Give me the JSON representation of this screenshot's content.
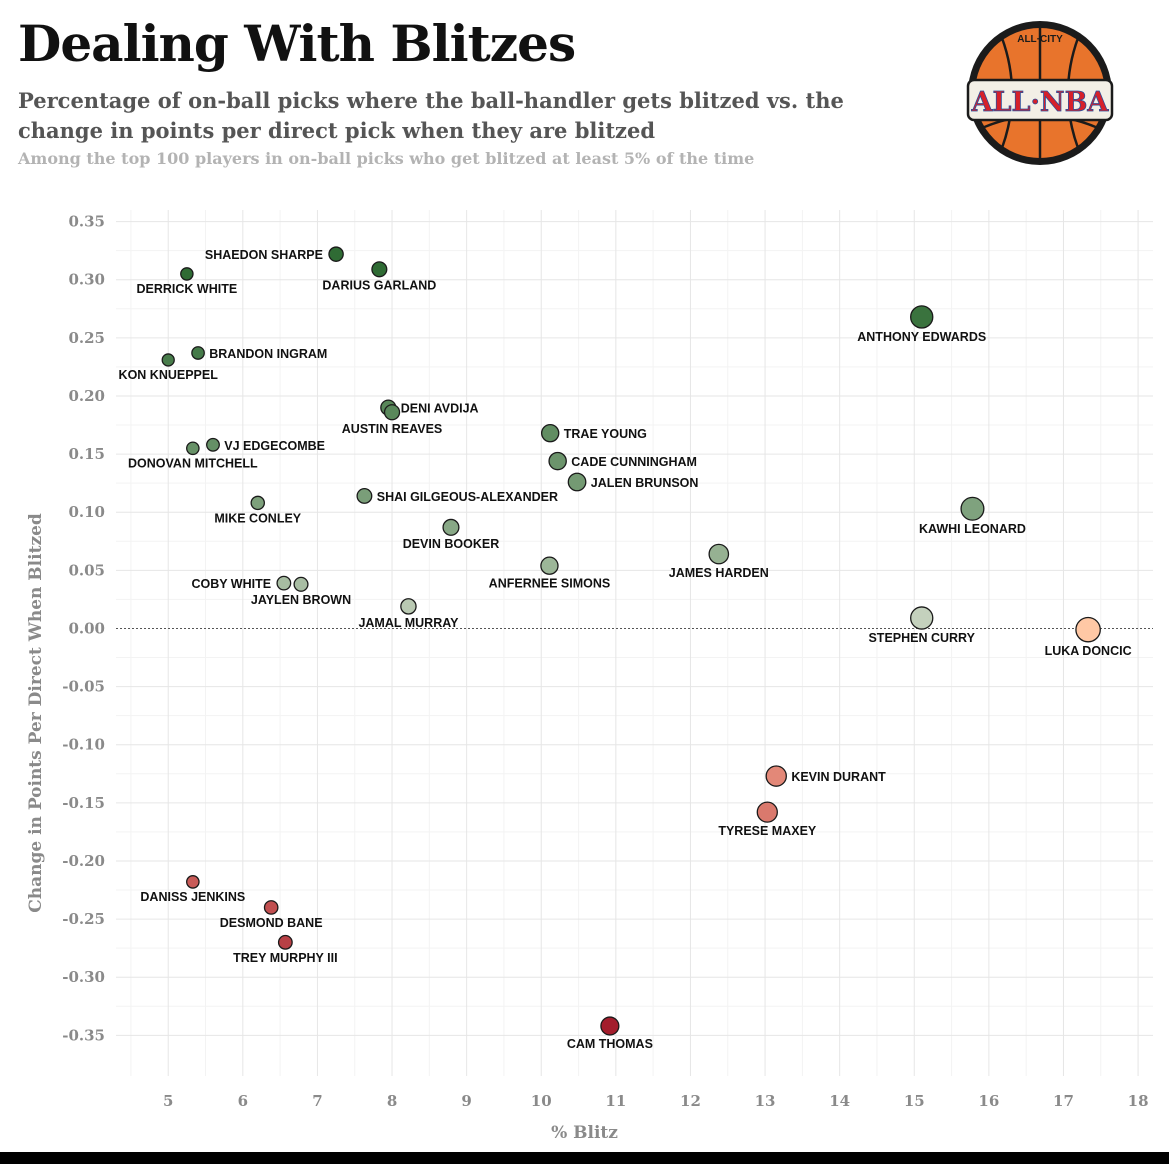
{
  "chart_data": {
    "type": "scatter",
    "title": "Dealing With Blitzes",
    "subtitle": "Percentage of on-ball picks where the ball-handler gets blitzed vs. the change in points per direct pick when they are blitzed",
    "note": "Among the top 100 players in on-ball picks who get blitzed at least 5% of the time",
    "xlabel": "% Blitz",
    "ylabel": "Change in Points Per Direct When Blitzed",
    "xlim": [
      4.3,
      18.2
    ],
    "ylim": [
      -0.385,
      0.36
    ],
    "x_ticks": [
      5,
      6,
      7,
      8,
      9,
      10,
      11,
      12,
      13,
      14,
      15,
      16,
      17,
      18
    ],
    "y_ticks": [
      0.35,
      0.3,
      0.25,
      0.2,
      0.15,
      0.1,
      0.05,
      0.0,
      -0.05,
      -0.1,
      -0.15,
      -0.2,
      -0.25,
      -0.3,
      -0.35
    ],
    "y_tick_labels": [
      "0.35",
      "0.30",
      "0.25",
      "0.20",
      "0.15",
      "0.10",
      "0.05",
      "0.00",
      "-0.05",
      "-0.10",
      "-0.15",
      "-0.20",
      "-0.25",
      "-0.30",
      "-0.35"
    ],
    "grid": true,
    "zero_line": "dashed",
    "color_scale": {
      "positive": "#2f6b34",
      "neutral": "#d9dfd0",
      "negative": "#a31d2c"
    },
    "points": [
      {
        "name": "SHAEDON SHARPE",
        "x": 7.25,
        "y": 0.322,
        "label_pos": "left"
      },
      {
        "name": "DERRICK WHITE",
        "x": 5.25,
        "y": 0.305,
        "label_pos": "below"
      },
      {
        "name": "DARIUS GARLAND",
        "x": 7.83,
        "y": 0.309,
        "label_pos": "below"
      },
      {
        "name": "ANTHONY EDWARDS",
        "x": 15.1,
        "y": 0.268,
        "label_pos": "below"
      },
      {
        "name": "BRANDON INGRAM",
        "x": 5.4,
        "y": 0.237,
        "label_pos": "right"
      },
      {
        "name": "KON KNUEPPEL",
        "x": 5.0,
        "y": 0.231,
        "label_pos": "below"
      },
      {
        "name": "DENI AVDIJA",
        "x": 7.95,
        "y": 0.19,
        "label_pos": "right"
      },
      {
        "name": "AUSTIN REAVES",
        "x": 8.0,
        "y": 0.186,
        "label_pos": "below"
      },
      {
        "name": "TRAE YOUNG",
        "x": 10.12,
        "y": 0.168,
        "label_pos": "right"
      },
      {
        "name": "VJ EDGECOMBE",
        "x": 5.6,
        "y": 0.158,
        "label_pos": "right"
      },
      {
        "name": "DONOVAN MITCHELL",
        "x": 5.33,
        "y": 0.155,
        "label_pos": "below"
      },
      {
        "name": "CADE CUNNINGHAM",
        "x": 10.22,
        "y": 0.144,
        "label_pos": "right"
      },
      {
        "name": "JALEN BRUNSON",
        "x": 10.48,
        "y": 0.126,
        "label_pos": "right"
      },
      {
        "name": "SHAI GILGEOUS-ALEXANDER",
        "x": 7.63,
        "y": 0.114,
        "label_pos": "right"
      },
      {
        "name": "MIKE CONLEY",
        "x": 6.2,
        "y": 0.108,
        "label_pos": "below"
      },
      {
        "name": "KAWHI LEONARD",
        "x": 15.78,
        "y": 0.103,
        "label_pos": "below"
      },
      {
        "name": "DEVIN BOOKER",
        "x": 8.79,
        "y": 0.087,
        "label_pos": "below"
      },
      {
        "name": "JAMES HARDEN",
        "x": 12.38,
        "y": 0.064,
        "label_pos": "below"
      },
      {
        "name": "ANFERNEE SIMONS",
        "x": 10.11,
        "y": 0.054,
        "label_pos": "below"
      },
      {
        "name": "COBY WHITE",
        "x": 6.55,
        "y": 0.039,
        "label_pos": "left"
      },
      {
        "name": "JAYLEN BROWN",
        "x": 6.78,
        "y": 0.038,
        "label_pos": "below"
      },
      {
        "name": "JAMAL MURRAY",
        "x": 8.22,
        "y": 0.019,
        "label_pos": "below"
      },
      {
        "name": "STEPHEN CURRY",
        "x": 15.1,
        "y": 0.009,
        "label_pos": "below"
      },
      {
        "name": "LUKA DONCIC",
        "x": 17.33,
        "y": -0.001,
        "label_pos": "below"
      },
      {
        "name": "KEVIN DURANT",
        "x": 13.15,
        "y": -0.127,
        "label_pos": "right"
      },
      {
        "name": "TYRESE MAXEY",
        "x": 13.03,
        "y": -0.158,
        "label_pos": "below"
      },
      {
        "name": "DANISS JENKINS",
        "x": 5.33,
        "y": -0.218,
        "label_pos": "below"
      },
      {
        "name": "DESMOND BANE",
        "x": 6.38,
        "y": -0.24,
        "label_pos": "below"
      },
      {
        "name": "TREY MURPHY III",
        "x": 6.57,
        "y": -0.27,
        "label_pos": "below"
      },
      {
        "name": "CAM THOMAS",
        "x": 10.92,
        "y": -0.342,
        "label_pos": "below"
      }
    ]
  },
  "logo": {
    "text_top": "ALL·CITY",
    "text_main": "ALL·NBA",
    "colors": {
      "ball": "#e8742c",
      "ring": "#1b1b1b",
      "banner": "#f3efe6",
      "red": "#d6202a",
      "blue": "#2b4f9c"
    }
  }
}
